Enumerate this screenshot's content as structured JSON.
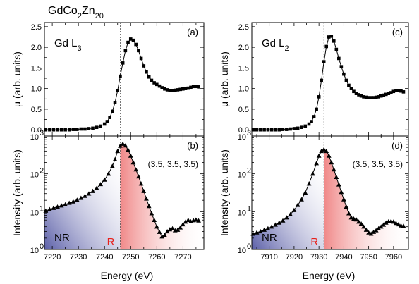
{
  "figure_title": {
    "base": "GdCo",
    "sub1": "2",
    "mid": "Zn",
    "sub2": "20"
  },
  "x_axis_label": "Energy (eV)",
  "colors": {
    "nr_region": "#5b5fa8",
    "r_region": "#f4a0a0",
    "marker": "#000000",
    "edge_line": "#555555"
  },
  "chart_data": [
    {
      "panel": "(a)",
      "type": "line",
      "edge_label": {
        "base": "Gd L",
        "sub": "3"
      },
      "ylabel": "μ (arb. units)",
      "xlim": [
        7217,
        7278
      ],
      "ylim": [
        -0.15,
        2.6
      ],
      "xticks": [
        7220,
        7230,
        7240,
        7250,
        7260,
        7270
      ],
      "yticks": [
        0.0,
        0.5,
        1.0,
        1.5,
        2.0,
        2.5
      ],
      "ytick_labels": [
        "0.0",
        "0.5",
        "1.0",
        "1.5",
        "2.0",
        "2.5"
      ],
      "edge_energy": 7246,
      "x": [
        7217.5,
        7219,
        7220.5,
        7222,
        7223.5,
        7225,
        7226.5,
        7228,
        7229.5,
        7231,
        7232.5,
        7234,
        7235.5,
        7237,
        7238.5,
        7240,
        7241,
        7242,
        7243,
        7244,
        7245,
        7246,
        7247,
        7248,
        7249,
        7250,
        7251,
        7252,
        7253,
        7254,
        7255,
        7256,
        7257,
        7258,
        7259,
        7260,
        7261,
        7262,
        7263,
        7264,
        7265,
        7266,
        7267,
        7268,
        7269,
        7270,
        7271,
        7272,
        7273,
        7274,
        7275,
        7276
      ],
      "y": [
        0.0,
        0.0,
        0.0,
        0.0,
        0.0,
        0.0,
        0.0,
        0.01,
        0.01,
        0.02,
        0.02,
        0.03,
        0.04,
        0.06,
        0.09,
        0.14,
        0.2,
        0.3,
        0.45,
        0.66,
        0.95,
        1.3,
        1.62,
        1.92,
        2.12,
        2.2,
        2.17,
        2.07,
        1.92,
        1.73,
        1.55,
        1.4,
        1.28,
        1.2,
        1.14,
        1.1,
        1.06,
        1.02,
        0.99,
        0.97,
        0.95,
        0.95,
        0.96,
        0.97,
        0.98,
        0.99,
        1.0,
        1.01,
        1.03,
        1.05,
        1.05,
        1.04
      ]
    },
    {
      "panel": "(b)",
      "type": "scatter",
      "yscale": "log",
      "ylabel": "Intensity (arb. units)",
      "hkl_label": "(3.5, 3.5, 3.5)",
      "region_labels": {
        "nr": "NR",
        "r": "R"
      },
      "xlim": [
        7217,
        7278
      ],
      "ylim": [
        1,
        1000
      ],
      "xticks": [
        7220,
        7230,
        7240,
        7250,
        7260,
        7270
      ],
      "yticks": [
        1,
        10,
        100,
        1000
      ],
      "ytick_labels": [
        {
          "base": "10",
          "exp": "0"
        },
        {
          "base": "10",
          "exp": "1"
        },
        {
          "base": "10",
          "exp": "2"
        },
        {
          "base": "10",
          "exp": "3"
        }
      ],
      "edge_energy": 7246,
      "x": [
        7217.5,
        7219,
        7220.5,
        7222,
        7223.5,
        7225,
        7226.5,
        7228,
        7229.5,
        7231,
        7232.5,
        7234,
        7235.5,
        7237,
        7238.5,
        7240,
        7241.5,
        7243,
        7244,
        7245,
        7246,
        7247,
        7248,
        7249,
        7250,
        7251,
        7252,
        7253,
        7254,
        7255,
        7256,
        7257,
        7258,
        7259,
        7260,
        7261,
        7262,
        7263,
        7264,
        7265,
        7266,
        7267,
        7268,
        7269,
        7270,
        7271,
        7272,
        7273,
        7274,
        7275,
        7276
      ],
      "y": [
        10.5,
        11.5,
        12.5,
        13.5,
        14.5,
        15.5,
        17,
        18.5,
        20.5,
        23,
        26,
        30,
        35,
        42,
        53,
        70,
        100,
        160,
        240,
        400,
        550,
        620,
        560,
        430,
        300,
        200,
        130,
        85,
        55,
        35,
        22,
        14,
        9,
        6,
        4,
        2.9,
        2.2,
        2.4,
        3,
        3.4,
        3.6,
        3.2,
        3.3,
        3.8,
        4.6,
        5.4,
        6,
        5.5,
        5.9,
        6.1,
        5.8
      ]
    },
    {
      "panel": "(c)",
      "type": "line",
      "edge_label": {
        "base": "Gd L",
        "sub": "2"
      },
      "ylabel": "μ (arb. units)",
      "xlim": [
        7903,
        7966
      ],
      "ylim": [
        -0.15,
        2.6
      ],
      "xticks": [
        7910,
        7920,
        7930,
        7940,
        7950,
        7960
      ],
      "yticks": [
        0.0,
        0.5,
        1.0,
        1.5,
        2.0,
        2.5
      ],
      "ytick_labels": [
        "0.0",
        "0.5",
        "1.0",
        "1.5",
        "2.0",
        "2.5"
      ],
      "edge_energy": 7932,
      "x": [
        7903.5,
        7905,
        7906.5,
        7908,
        7909.5,
        7911,
        7912.5,
        7914,
        7915.5,
        7917,
        7918.5,
        7920,
        7921.5,
        7923,
        7924.5,
        7926,
        7927,
        7928,
        7929,
        7930,
        7931,
        7932,
        7933,
        7934,
        7935,
        7936,
        7937,
        7938,
        7939,
        7940,
        7941,
        7942,
        7943,
        7944,
        7945,
        7946,
        7947,
        7948,
        7949,
        7950,
        7951,
        7952,
        7953,
        7954,
        7955,
        7956,
        7957,
        7958,
        7959,
        7960,
        7961,
        7962,
        7963,
        7964
      ],
      "y": [
        0.0,
        0.0,
        0.0,
        0.0,
        0.0,
        0.0,
        0.0,
        0.0,
        0.01,
        0.01,
        0.02,
        0.03,
        0.04,
        0.06,
        0.09,
        0.14,
        0.2,
        0.32,
        0.5,
        0.8,
        1.2,
        1.65,
        2.02,
        2.25,
        2.27,
        2.15,
        1.95,
        1.73,
        1.53,
        1.35,
        1.2,
        1.08,
        1.0,
        0.93,
        0.88,
        0.85,
        0.82,
        0.8,
        0.79,
        0.78,
        0.78,
        0.78,
        0.79,
        0.8,
        0.82,
        0.84,
        0.86,
        0.88,
        0.9,
        0.93,
        0.95,
        0.95,
        0.94,
        0.92
      ]
    },
    {
      "panel": "(d)",
      "type": "scatter",
      "yscale": "log",
      "ylabel": "Intensity (arb. units)",
      "hkl_label": "(3.5, 3.5, 3.5)",
      "region_labels": {
        "nr": "NR",
        "r": "R"
      },
      "xlim": [
        7903,
        7966
      ],
      "ylim": [
        1,
        1000
      ],
      "xticks": [
        7910,
        7920,
        7930,
        7940,
        7950,
        7960
      ],
      "yticks": [
        1,
        10,
        100,
        1000
      ],
      "ytick_labels": [
        {
          "base": "10",
          "exp": "0"
        },
        {
          "base": "10",
          "exp": "1"
        },
        {
          "base": "10",
          "exp": "2"
        },
        {
          "base": "10",
          "exp": "3"
        }
      ],
      "edge_energy": 7932,
      "x": [
        7903.5,
        7905,
        7906.5,
        7908,
        7909.5,
        7911,
        7912.5,
        7914,
        7915.5,
        7917,
        7918.5,
        7920,
        7921.5,
        7923,
        7924.5,
        7926,
        7927.5,
        7929,
        7930,
        7931,
        7932,
        7933,
        7934,
        7935,
        7936,
        7937,
        7938,
        7939,
        7940,
        7941,
        7942,
        7943,
        7944,
        7945,
        7946,
        7947,
        7948,
        7949,
        7950,
        7951,
        7952,
        7953,
        7954,
        7955,
        7956,
        7957,
        7958,
        7959,
        7960,
        7961,
        7962,
        7963,
        7964
      ],
      "y": [
        2.6,
        2.8,
        3.0,
        3.3,
        3.6,
        4.0,
        4.5,
        5.1,
        5.8,
        7,
        8.5,
        11,
        15,
        21,
        32,
        55,
        100,
        190,
        300,
        400,
        440,
        400,
        300,
        200,
        130,
        82,
        52,
        33,
        21,
        13.5,
        9,
        7,
        6.5,
        6.2,
        5.4,
        4.8,
        4,
        3.3,
        2.8,
        2.6,
        2.9,
        3.2,
        3.6,
        4,
        4.5,
        5.1,
        5.5,
        5.6,
        5.4,
        5.0,
        4.6,
        4.3,
        4.2
      ]
    }
  ]
}
